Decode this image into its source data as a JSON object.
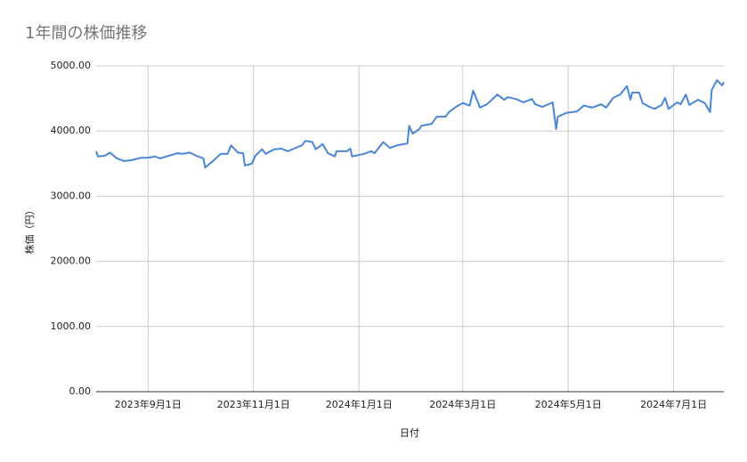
{
  "chart_data": {
    "type": "line",
    "title": "1年間の株価推移",
    "x_label": "日付",
    "y_label": "株価（円）",
    "x": [
      "2023-08-02",
      "2023-08-03",
      "2023-08-07",
      "2023-08-10",
      "2023-08-14",
      "2023-08-18",
      "2023-08-22",
      "2023-08-28",
      "2023-09-01",
      "2023-09-05",
      "2023-09-08",
      "2023-09-13",
      "2023-09-18",
      "2023-09-21",
      "2023-09-25",
      "2023-09-29",
      "2023-10-03",
      "2023-10-04",
      "2023-10-09",
      "2023-10-13",
      "2023-10-17",
      "2023-10-19",
      "2023-10-23",
      "2023-10-26",
      "2023-10-27",
      "2023-10-31",
      "2023-11-02",
      "2023-11-06",
      "2023-11-08",
      "2023-11-13",
      "2023-11-17",
      "2023-11-21",
      "2023-11-27",
      "2023-11-29",
      "2023-12-01",
      "2023-12-05",
      "2023-12-07",
      "2023-12-11",
      "2023-12-14",
      "2023-12-18",
      "2023-12-19",
      "2023-12-25",
      "2023-12-27",
      "2023-12-28",
      "2024-01-04",
      "2024-01-08",
      "2024-01-10",
      "2024-01-15",
      "2024-01-19",
      "2024-01-23",
      "2024-01-29",
      "2024-01-30",
      "2024-02-01",
      "2024-02-05",
      "2024-02-06",
      "2024-02-12",
      "2024-02-15",
      "2024-02-20",
      "2024-02-22",
      "2024-02-26",
      "2024-03-01",
      "2024-03-05",
      "2024-03-07",
      "2024-03-11",
      "2024-03-15",
      "2024-03-19",
      "2024-03-21",
      "2024-03-25",
      "2024-03-27",
      "2024-04-01",
      "2024-04-05",
      "2024-04-10",
      "2024-04-12",
      "2024-04-16",
      "2024-04-22",
      "2024-04-24",
      "2024-04-25",
      "2024-04-30",
      "2024-05-06",
      "2024-05-10",
      "2024-05-15",
      "2024-05-20",
      "2024-05-23",
      "2024-05-27",
      "2024-05-31",
      "2024-06-04",
      "2024-06-06",
      "2024-06-07",
      "2024-06-11",
      "2024-06-13",
      "2024-06-17",
      "2024-06-20",
      "2024-06-24",
      "2024-06-26",
      "2024-06-28",
      "2024-07-03",
      "2024-07-05",
      "2024-07-08",
      "2024-07-10",
      "2024-07-15",
      "2024-07-19",
      "2024-07-22",
      "2024-07-23",
      "2024-07-26",
      "2024-07-29",
      "2024-07-30"
    ],
    "values": [
      3690,
      3610,
      3620,
      3670,
      3580,
      3540,
      3550,
      3590,
      3590,
      3610,
      3580,
      3620,
      3660,
      3650,
      3670,
      3620,
      3580,
      3440,
      3550,
      3650,
      3650,
      3780,
      3670,
      3660,
      3470,
      3500,
      3620,
      3720,
      3650,
      3720,
      3730,
      3690,
      3760,
      3780,
      3850,
      3830,
      3720,
      3800,
      3660,
      3610,
      3690,
      3690,
      3730,
      3610,
      3650,
      3690,
      3660,
      3830,
      3740,
      3780,
      3810,
      4080,
      3960,
      4030,
      4080,
      4110,
      4220,
      4220,
      4290,
      4370,
      4430,
      4390,
      4620,
      4360,
      4410,
      4510,
      4560,
      4480,
      4520,
      4490,
      4440,
      4490,
      4410,
      4370,
      4440,
      4030,
      4220,
      4280,
      4300,
      4390,
      4360,
      4410,
      4360,
      4510,
      4560,
      4690,
      4480,
      4590,
      4590,
      4430,
      4370,
      4340,
      4400,
      4510,
      4340,
      4440,
      4410,
      4560,
      4400,
      4480,
      4430,
      4290,
      4630,
      4780,
      4700,
      4750
    ],
    "color": "#4a86d4",
    "xlim": [
      "2023-08-02",
      "2024-07-30"
    ],
    "xticks": [
      {
        "value": "2023-09-01",
        "label": "2023年9月1日"
      },
      {
        "value": "2023-11-01",
        "label": "2023年11月1日"
      },
      {
        "value": "2024-01-01",
        "label": "2024年1月1日"
      },
      {
        "value": "2024-03-01",
        "label": "2024年3月1日"
      },
      {
        "value": "2024-05-01",
        "label": "2024年5月1日"
      },
      {
        "value": "2024-07-01",
        "label": "2024年7月1日"
      }
    ],
    "ylim": [
      0,
      5000
    ],
    "yticks": [
      {
        "value": 0,
        "label": "0.00"
      },
      {
        "value": 1000,
        "label": "1000.00"
      },
      {
        "value": 2000,
        "label": "2000.00"
      },
      {
        "value": 3000,
        "label": "3000.00"
      },
      {
        "value": 4000,
        "label": "4000.00"
      },
      {
        "value": 5000,
        "label": "5000.00"
      }
    ],
    "grid": true
  }
}
